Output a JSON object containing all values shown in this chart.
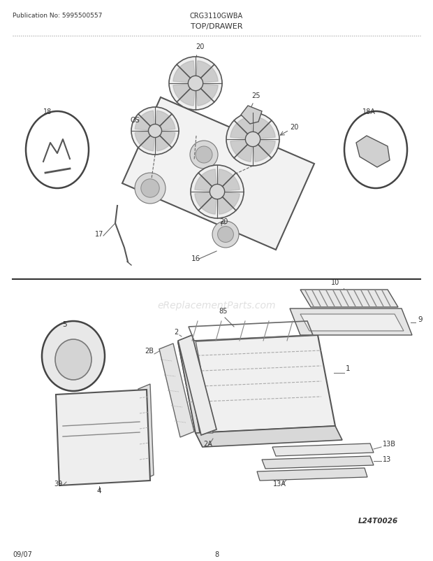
{
  "title": "TOP/DRAWER",
  "pub_no": "Publication No: 5995500557",
  "model": "CRG3110GWBA",
  "date": "09/07",
  "page": "8",
  "watermark": "eReplacementParts.com",
  "logo": "L24T0026",
  "bg_color": "#ffffff",
  "line_color": "#333333",
  "text_color": "#333333"
}
